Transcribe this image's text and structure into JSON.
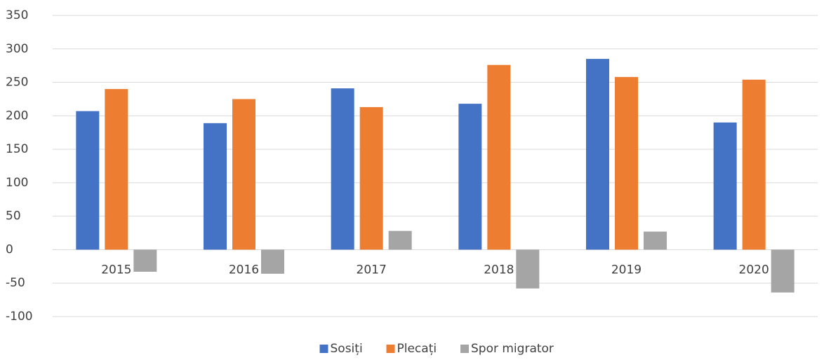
{
  "chart_data": {
    "type": "bar",
    "categories": [
      "2015",
      "2016",
      "2017",
      "2018",
      "2019",
      "2020"
    ],
    "series": [
      {
        "name": "Sosiți",
        "color": "#4472c4",
        "values": [
          207,
          189,
          241,
          218,
          285,
          190
        ]
      },
      {
        "name": "Plecați",
        "color": "#ed7d31",
        "values": [
          240,
          225,
          213,
          276,
          258,
          254
        ]
      },
      {
        "name": "Spor migrator",
        "color": "#a5a5a5",
        "values": [
          -33,
          -36,
          28,
          -58,
          27,
          -64
        ]
      }
    ],
    "ylim": [
      -100,
      350
    ],
    "yticks": [
      -100,
      -50,
      0,
      50,
      100,
      150,
      200,
      250,
      300,
      350
    ],
    "grid": true,
    "legend": "bottom"
  }
}
